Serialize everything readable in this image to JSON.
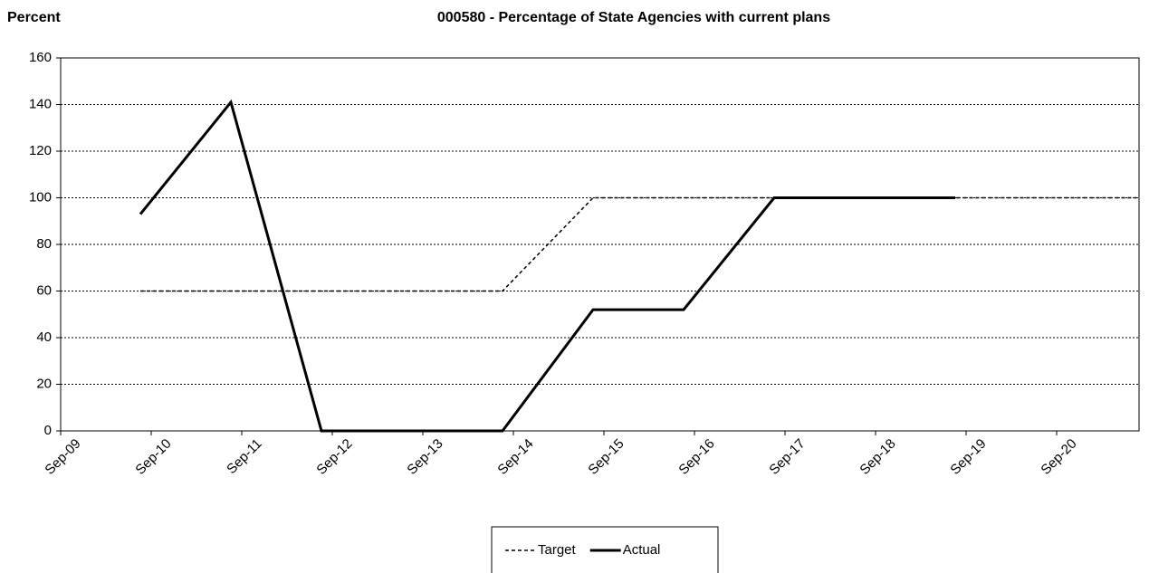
{
  "chart_data": {
    "type": "line",
    "title": "000580 - Percentage of State Agencies with current plans",
    "ylabel": "Percent",
    "categories": [
      "Sep-09",
      "Sep-10",
      "Sep-11",
      "Sep-12",
      "Sep-13",
      "Sep-14",
      "Sep-15",
      "Sep-16",
      "Sep-17",
      "Sep-18",
      "Sep-19",
      "Sep-20"
    ],
    "series": [
      {
        "name": "Target",
        "color": "#000000",
        "dash": true,
        "values": [
          60,
          60,
          60,
          60,
          60,
          100,
          100,
          100,
          100,
          100,
          100,
          100
        ]
      },
      {
        "name": "Actual",
        "color": "#000000",
        "dash": false,
        "values": [
          93,
          141,
          0,
          0,
          0,
          52,
          52,
          100,
          100,
          100,
          null,
          null
        ]
      }
    ],
    "ylim": [
      0,
      160
    ],
    "yticks": [
      0,
      20,
      40,
      60,
      80,
      100,
      120,
      140,
      160
    ],
    "grid": true,
    "legend": "bottom"
  }
}
